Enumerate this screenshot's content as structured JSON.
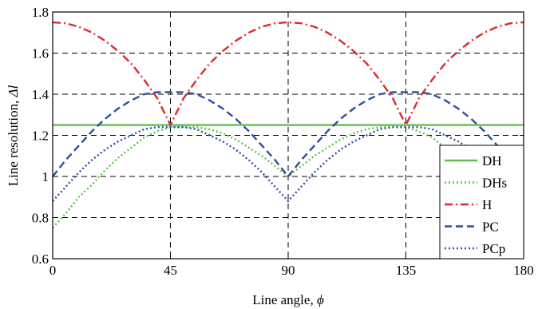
{
  "chart_data": {
    "type": "line",
    "xlabel": "Line angle,",
    "xlabel_symbol": "ϕ",
    "ylabel": "Line resolution,",
    "ylabel_symbol": "Δl",
    "xlim": [
      0,
      180
    ],
    "ylim": [
      0.6,
      1.8
    ],
    "xticks": [
      0,
      45,
      90,
      135,
      180
    ],
    "xtick_labels": [
      "0",
      "45",
      "90",
      "135",
      "180"
    ],
    "yticks": [
      0.6,
      0.8,
      1,
      1.2,
      1.4,
      1.6,
      1.8
    ],
    "ytick_labels": [
      "0.6",
      "0.8",
      "1",
      "1.2",
      "1.4",
      "1.6",
      "1.8"
    ],
    "grid": true,
    "legend_position": "bottom-right",
    "x": [
      0,
      5,
      10,
      15,
      20,
      25,
      30,
      35,
      40,
      45,
      50,
      55,
      60,
      65,
      70,
      75,
      80,
      85,
      90,
      95,
      100,
      105,
      110,
      115,
      120,
      125,
      130,
      135,
      140,
      145,
      150,
      155,
      160,
      165,
      170,
      175,
      180
    ],
    "series": [
      {
        "name": "DH",
        "color": "#5ec24a",
        "dash": "solid",
        "values": [
          1.25,
          1.25,
          1.25,
          1.25,
          1.25,
          1.25,
          1.25,
          1.25,
          1.25,
          1.25,
          1.25,
          1.25,
          1.25,
          1.25,
          1.25,
          1.25,
          1.25,
          1.25,
          1.25,
          1.25,
          1.25,
          1.25,
          1.25,
          1.25,
          1.25,
          1.25,
          1.25,
          1.25,
          1.25,
          1.25,
          1.25,
          1.25,
          1.25,
          1.25,
          1.25,
          1.25,
          1.25
        ]
      },
      {
        "name": "DHs",
        "color": "#5ec24a",
        "dash": "dot",
        "values": [
          0.75,
          0.82,
          0.9,
          0.96,
          1.03,
          1.09,
          1.14,
          1.19,
          1.22,
          1.24,
          1.24,
          1.24,
          1.23,
          1.21,
          1.18,
          1.14,
          1.1,
          1.05,
          1.0,
          1.05,
          1.1,
          1.14,
          1.18,
          1.21,
          1.23,
          1.24,
          1.24,
          1.24,
          1.22,
          1.19,
          1.14,
          1.09,
          1.03,
          0.96,
          0.9,
          0.82,
          0.75
        ]
      },
      {
        "name": "H",
        "color": "#e0282e",
        "dash": "dashdot",
        "values": [
          1.75,
          1.745,
          1.728,
          1.7,
          1.66,
          1.61,
          1.55,
          1.47,
          1.38,
          1.25,
          1.38,
          1.47,
          1.55,
          1.61,
          1.66,
          1.7,
          1.728,
          1.745,
          1.75,
          1.745,
          1.728,
          1.7,
          1.66,
          1.61,
          1.55,
          1.47,
          1.38,
          1.25,
          1.38,
          1.47,
          1.55,
          1.61,
          1.66,
          1.7,
          1.728,
          1.745,
          1.75
        ]
      },
      {
        "name": "PC",
        "color": "#2e4f9c",
        "dash": "dash",
        "values": [
          1.0,
          1.08,
          1.15,
          1.22,
          1.28,
          1.33,
          1.37,
          1.4,
          1.41,
          1.41,
          1.41,
          1.4,
          1.37,
          1.33,
          1.28,
          1.22,
          1.15,
          1.08,
          1.0,
          1.08,
          1.15,
          1.22,
          1.28,
          1.33,
          1.37,
          1.4,
          1.41,
          1.41,
          1.41,
          1.4,
          1.37,
          1.33,
          1.28,
          1.22,
          1.15,
          1.08,
          1.0
        ]
      },
      {
        "name": "PCp",
        "color": "#2e4f9c",
        "dash": "dot",
        "values": [
          0.88,
          0.95,
          1.02,
          1.08,
          1.13,
          1.17,
          1.2,
          1.23,
          1.24,
          1.24,
          1.24,
          1.23,
          1.2,
          1.17,
          1.13,
          1.08,
          1.02,
          0.95,
          0.88,
          0.95,
          1.02,
          1.08,
          1.13,
          1.17,
          1.2,
          1.23,
          1.24,
          1.24,
          1.24,
          1.23,
          1.2,
          1.17,
          1.13,
          1.08,
          1.02,
          0.95,
          0.88
        ]
      }
    ]
  }
}
